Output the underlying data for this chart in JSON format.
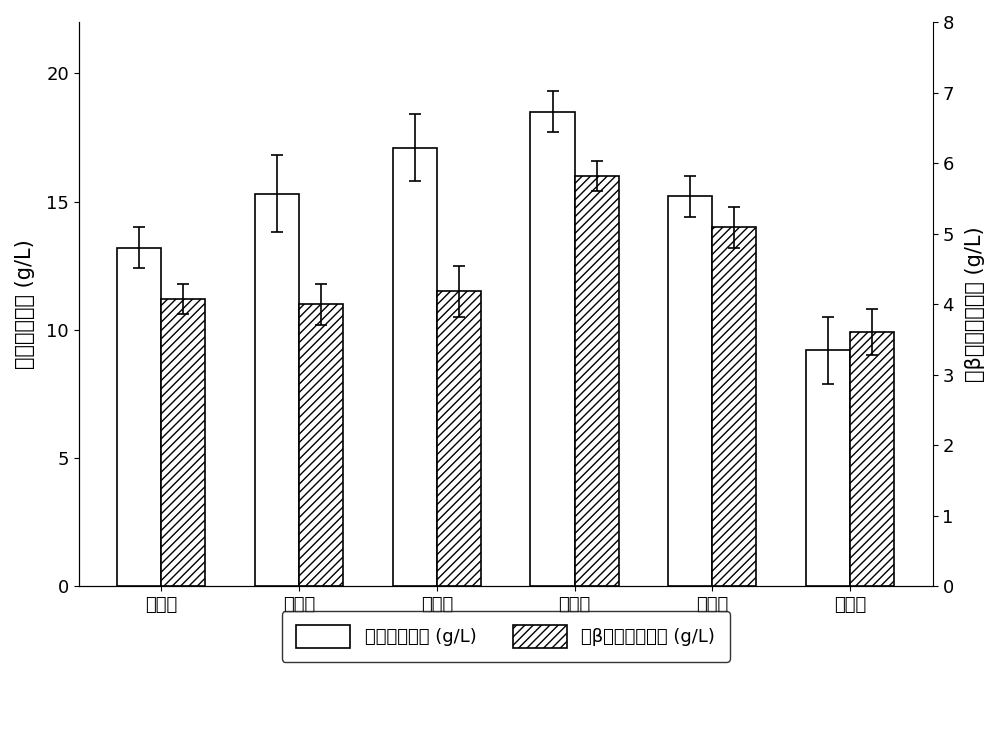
{
  "categories": [
    "配方一",
    "配方二",
    "配方三",
    "配方四",
    "配方五",
    "配方六"
  ],
  "white_bars": [
    13.2,
    15.3,
    17.1,
    18.5,
    15.2,
    9.2
  ],
  "hatched_bars": [
    11.2,
    11.0,
    11.5,
    16.0,
    14.0,
    9.9
  ],
  "white_errors": [
    0.8,
    1.5,
    1.3,
    0.8,
    0.8,
    1.3
  ],
  "hatched_errors": [
    0.6,
    0.8,
    1.0,
    0.6,
    0.8,
    0.9
  ],
  "left_ylim": [
    0,
    22
  ],
  "left_yticks": [
    0,
    5,
    10,
    15,
    20
  ],
  "right_ylim": [
    0,
    8
  ],
  "right_yticks": [
    0,
    1,
    2,
    3,
    4,
    5,
    6,
    7,
    8
  ],
  "left_ylabel": "生物多糖产量 (g/L)",
  "right_ylabel": "聚β羟基丁酸产量 (g/L)",
  "legend_white": "生物多糖产量 (g/L)",
  "legend_hatched": "聚β羟基丁酸产量 (g/L)",
  "bar_width": 0.32,
  "white_color": "#ffffff",
  "white_edge": "#000000",
  "hatched_color": "#ffffff",
  "hatched_edge": "#000000",
  "hatch_pattern": "////",
  "background_color": "#ffffff",
  "figsize": [
    10.0,
    7.55
  ],
  "dpi": 100,
  "ylabel_fontsize": 15,
  "tick_fontsize": 13,
  "legend_fontsize": 13,
  "capsize": 4,
  "elinewidth": 1.2,
  "bar_linewidth": 1.2
}
